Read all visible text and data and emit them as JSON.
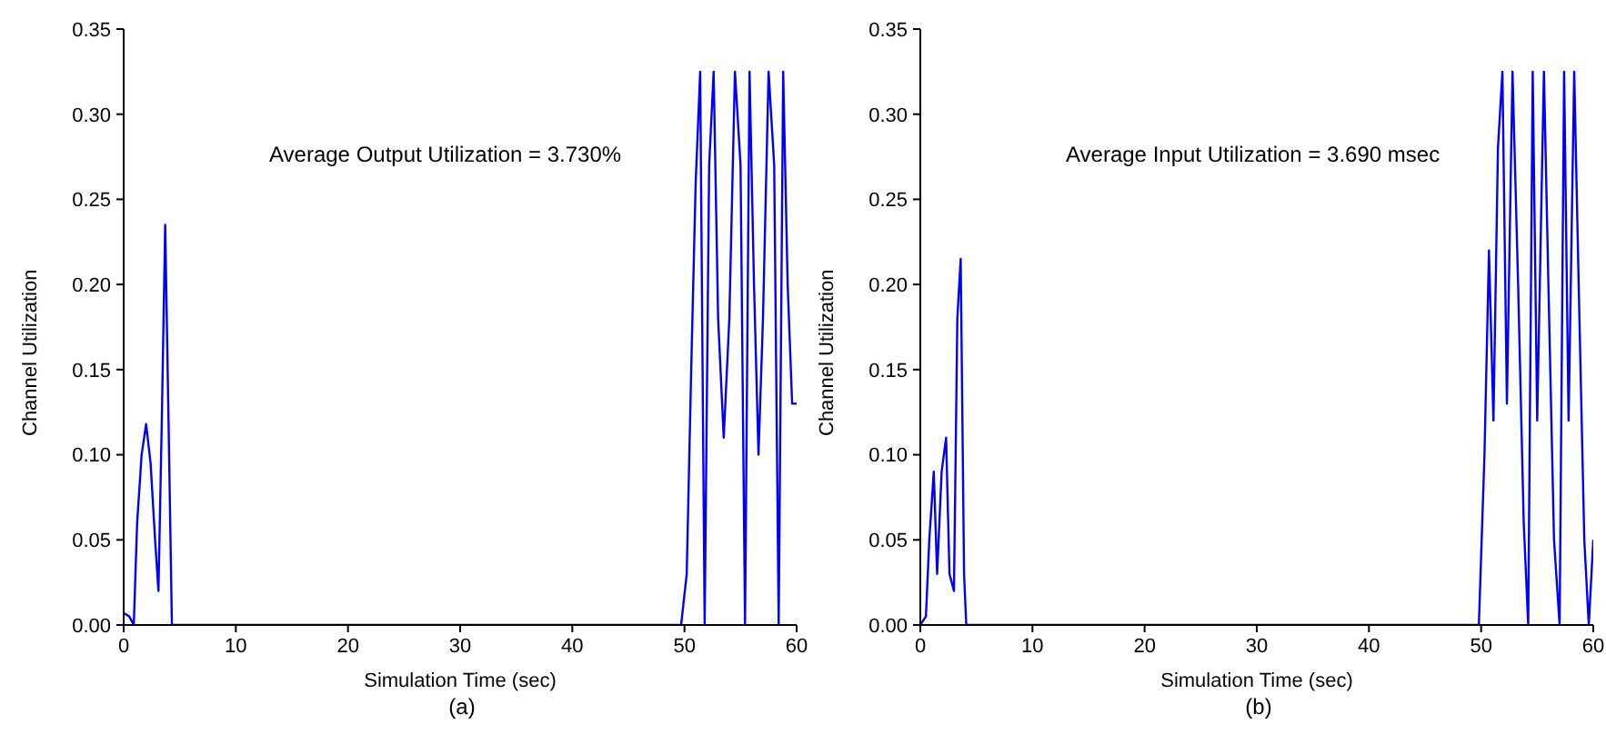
{
  "chart_data": [
    {
      "type": "line",
      "xlabel": "Simulation Time (sec)",
      "ylabel": "Channel Utilization",
      "annotations": [
        "Average Output Utilization = 3.730%",
        "(a)"
      ],
      "xlim": [
        0,
        60
      ],
      "ylim": [
        0,
        0.35
      ],
      "xticks": [
        0,
        10,
        20,
        30,
        40,
        50,
        60
      ],
      "yticks": [
        {
          "value": 0,
          "label": "0.00"
        },
        {
          "value": 0.05,
          "label": "0.05"
        },
        {
          "value": 0.1,
          "label": "0.10"
        },
        {
          "value": 0.15,
          "label": "0.15"
        },
        {
          "value": 0.2,
          "label": "0.20"
        },
        {
          "value": 0.25,
          "label": "0.25"
        },
        {
          "value": 0.3,
          "label": "0.30"
        },
        {
          "value": 0.35,
          "label": "0.35"
        }
      ],
      "grid": false,
      "marker": "none",
      "line_style": "solid",
      "series": [
        {
          "color": "#0000ff",
          "x": [
            0,
            0.5,
            0.9,
            1.2,
            1.6,
            2,
            2.4,
            2.8,
            3.1,
            3.4,
            3.7,
            4,
            4.3,
            10,
            20,
            30,
            40,
            49.7,
            50.2,
            50.6,
            51,
            51.4,
            51.8,
            52.2,
            52.6,
            53,
            53.5,
            54,
            54.5,
            55,
            55.4,
            55.8,
            56.2,
            56.6,
            57,
            57.5,
            58,
            58.4,
            58.8,
            59.2,
            59.6,
            60
          ],
          "values": [
            0.007,
            0.005,
            0,
            0.06,
            0.1,
            0.118,
            0.095,
            0.05,
            0.02,
            0.12,
            0.235,
            0.12,
            0,
            0,
            0,
            0,
            0,
            0,
            0.03,
            0.15,
            0.26,
            0.325,
            0,
            0.27,
            0.325,
            0.18,
            0.11,
            0.18,
            0.325,
            0.27,
            0,
            0.325,
            0.2,
            0.1,
            0.18,
            0.325,
            0.27,
            0,
            0.325,
            0.2,
            0.13,
            0.13
          ]
        }
      ]
    },
    {
      "type": "line",
      "xlabel": "Simulation Time (sec)",
      "ylabel": "Channel Utilization",
      "annotations": [
        "Average Input Utilization = 3.690 msec",
        "(b)"
      ],
      "xlim": [
        0,
        60
      ],
      "ylim": [
        0,
        0.35
      ],
      "xticks": [
        0,
        10,
        20,
        30,
        40,
        50,
        60
      ],
      "yticks": [
        {
          "value": 0,
          "label": "0.00"
        },
        {
          "value": 0.05,
          "label": "0.05"
        },
        {
          "value": 0.1,
          "label": "0.10"
        },
        {
          "value": 0.15,
          "label": "0.15"
        },
        {
          "value": 0.2,
          "label": "0.20"
        },
        {
          "value": 0.25,
          "label": "0.25"
        },
        {
          "value": 0.3,
          "label": "0.30"
        },
        {
          "value": 0.35,
          "label": "0.35"
        }
      ],
      "grid": false,
      "marker": "none",
      "line_style": "solid",
      "series": [
        {
          "color": "#0000ff",
          "x": [
            0,
            0.5,
            0.8,
            1.2,
            1.5,
            1.9,
            2.3,
            2.6,
            3,
            3.3,
            3.6,
            3.9,
            4.1,
            10,
            20,
            30,
            40,
            49.8,
            50.3,
            50.7,
            51.1,
            51.5,
            51.9,
            52.3,
            52.8,
            53.3,
            53.8,
            54.2,
            54.6,
            55,
            55.6,
            56,
            56.5,
            57,
            57.4,
            57.8,
            58.3,
            58.7,
            59.2,
            59.6,
            60
          ],
          "values": [
            0,
            0.005,
            0.05,
            0.09,
            0.03,
            0.09,
            0.11,
            0.03,
            0.02,
            0.18,
            0.215,
            0.03,
            0,
            0,
            0,
            0,
            0,
            0,
            0.1,
            0.22,
            0.12,
            0.28,
            0.325,
            0.13,
            0.325,
            0.2,
            0.06,
            0,
            0.325,
            0.12,
            0.325,
            0.2,
            0.05,
            0,
            0.325,
            0.12,
            0.325,
            0.2,
            0.05,
            0,
            0.05
          ]
        }
      ]
    }
  ]
}
